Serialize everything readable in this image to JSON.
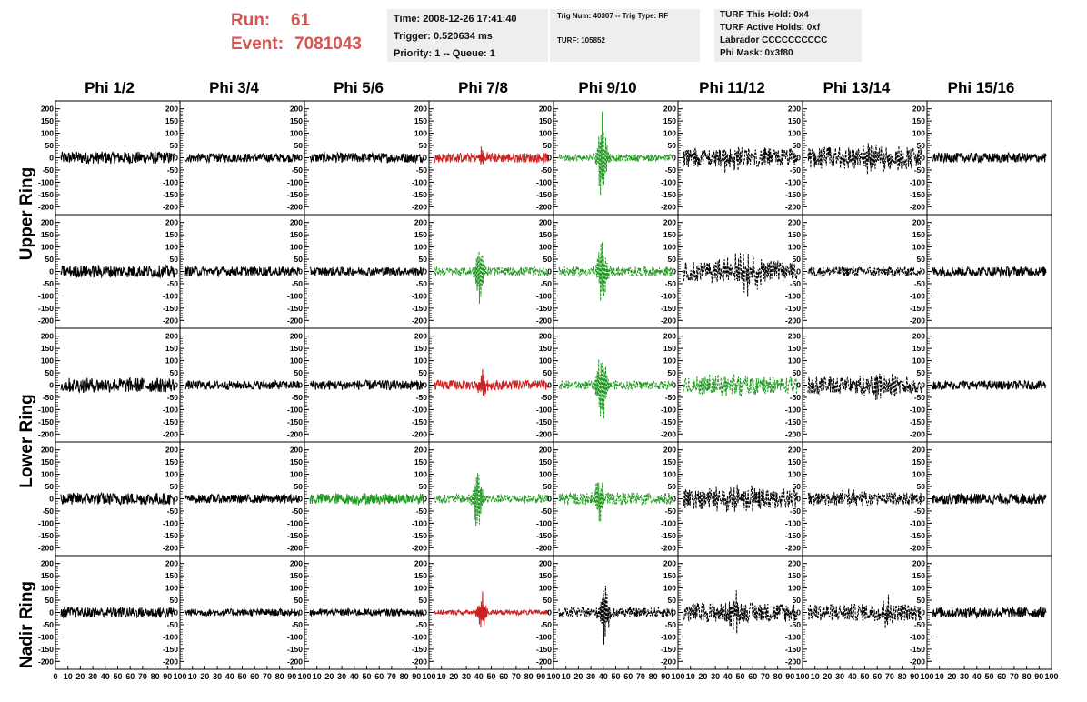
{
  "header": {
    "run_label": "Run:",
    "run_value": "61",
    "event_label": "Event:",
    "event_value": "7081043"
  },
  "info_box_1": {
    "line1": "Time: 2008-12-26 17:41:40",
    "line2": "Trigger: 0.520634 ms",
    "line3": "Priority: 1 -- Queue: 1"
  },
  "info_box_2": {
    "line1": "Trig Num: 40307 -- Trig Type: RF",
    "line2": "TURF: 105852"
  },
  "info_box_3": {
    "line1": "TURF This Hold: 0x4",
    "line2": "TURF Active Holds: 0xf",
    "line3": "Labrador CCCCCCCCCC",
    "line4": "Phi Mask: 0x3f80"
  },
  "columns": [
    "Phi 1/2",
    "Phi 3/4",
    "Phi 5/6",
    "Phi 7/8",
    "Phi 9/10",
    "Phi 11/12",
    "Phi 13/14",
    "Phi 15/16"
  ],
  "rings": {
    "upper": "Upper Ring",
    "lower": "Lower Ring",
    "nadir": "Nadir Ring"
  },
  "colors": {
    "header_red": "#d9534f",
    "info_bg": "#eeeeee",
    "normal": "#000000",
    "triggered_red": "#cc2222",
    "triggered_green": "#229922"
  },
  "chart_data": {
    "type": "line",
    "xlim": [
      0,
      100
    ],
    "ylim": [
      -210,
      210
    ],
    "y_ticks": [
      200,
      150,
      100,
      50,
      0,
      -50,
      -100,
      -150,
      -200
    ],
    "y_tick_labels": [
      "200",
      "150",
      "100",
      "50",
      "0",
      "-50",
      "-100",
      "-150",
      "-200"
    ],
    "x_tick_labels": [
      "0",
      "10",
      "20",
      "30",
      "40",
      "50",
      "60",
      "70",
      "80",
      "90",
      "100"
    ],
    "panel_rows": 5,
    "panel_cols": 8,
    "panels": [
      [
        {
          "color": "black",
          "style": "solid",
          "amp": 25,
          "burst": 0
        },
        {
          "color": "black",
          "style": "solid",
          "amp": 18,
          "burst": 0
        },
        {
          "color": "black",
          "style": "solid",
          "amp": 20,
          "burst": 0
        },
        {
          "color": "red",
          "style": "solid",
          "amp": 20,
          "burst": 40,
          "center": 42
        },
        {
          "color": "green",
          "style": "dashed",
          "amp": 15,
          "burst": 190,
          "center": 38
        },
        {
          "color": "black",
          "style": "dashed",
          "amp": 40,
          "burst": 20,
          "center": 40
        },
        {
          "color": "black",
          "style": "dashed",
          "amp": 45,
          "burst": 30,
          "center": 60
        },
        {
          "color": "black",
          "style": "solid",
          "amp": 20,
          "burst": 0
        }
      ],
      [
        {
          "color": "black",
          "style": "solid",
          "amp": 25,
          "burst": 0
        },
        {
          "color": "black",
          "style": "solid",
          "amp": 20,
          "burst": 0
        },
        {
          "color": "black",
          "style": "solid",
          "amp": 18,
          "burst": 0
        },
        {
          "color": "green",
          "style": "dashed",
          "amp": 18,
          "burst": 130,
          "center": 40
        },
        {
          "color": "green",
          "style": "dashed",
          "amp": 20,
          "burst": 140,
          "center": 38
        },
        {
          "color": "black",
          "style": "dashed",
          "amp": 40,
          "burst": 50,
          "center": 55
        },
        {
          "color": "black",
          "style": "dashed",
          "amp": 20,
          "burst": 0
        },
        {
          "color": "black",
          "style": "solid",
          "amp": 20,
          "burst": 0
        }
      ],
      [
        {
          "color": "black",
          "style": "solid",
          "amp": 30,
          "burst": 0
        },
        {
          "color": "black",
          "style": "solid",
          "amp": 18,
          "burst": 0
        },
        {
          "color": "black",
          "style": "solid",
          "amp": 20,
          "burst": 0
        },
        {
          "color": "red",
          "style": "solid",
          "amp": 20,
          "burst": 50,
          "center": 42
        },
        {
          "color": "green",
          "style": "dashed",
          "amp": 18,
          "burst": 180,
          "center": 38
        },
        {
          "color": "green",
          "style": "dashed",
          "amp": 35,
          "burst": 25,
          "center": 40
        },
        {
          "color": "black",
          "style": "dashed",
          "amp": 35,
          "burst": 35,
          "center": 60
        },
        {
          "color": "black",
          "style": "solid",
          "amp": 18,
          "burst": 0
        }
      ],
      [
        {
          "color": "black",
          "style": "solid",
          "amp": 25,
          "burst": 0
        },
        {
          "color": "black",
          "style": "solid",
          "amp": 18,
          "burst": 0
        },
        {
          "color": "green",
          "style": "solid",
          "amp": 22,
          "burst": 15,
          "center": 45
        },
        {
          "color": "green",
          "style": "dashed",
          "amp": 18,
          "burst": 150,
          "center": 38
        },
        {
          "color": "green",
          "style": "dashed",
          "amp": 25,
          "burst": 100,
          "center": 35
        },
        {
          "color": "black",
          "style": "dashed",
          "amp": 40,
          "burst": 30,
          "center": 50
        },
        {
          "color": "black",
          "style": "dashed",
          "amp": 25,
          "burst": 20,
          "center": 40
        },
        {
          "color": "black",
          "style": "solid",
          "amp": 22,
          "burst": 0
        }
      ],
      [
        {
          "color": "black",
          "style": "solid",
          "amp": 22,
          "burst": 0
        },
        {
          "color": "black",
          "style": "solid",
          "amp": 15,
          "burst": 0
        },
        {
          "color": "black",
          "style": "solid",
          "amp": 15,
          "burst": 0
        },
        {
          "color": "red",
          "style": "solid",
          "amp": 10,
          "burst": 85,
          "center": 42
        },
        {
          "color": "black",
          "style": "dashed",
          "amp": 20,
          "burst": 130,
          "center": 40
        },
        {
          "color": "black",
          "style": "dashed",
          "amp": 40,
          "burst": 80,
          "center": 45
        },
        {
          "color": "black",
          "style": "dashed",
          "amp": 35,
          "burst": 60,
          "center": 70
        },
        {
          "color": "black",
          "style": "solid",
          "amp": 22,
          "burst": 0
        }
      ]
    ]
  }
}
